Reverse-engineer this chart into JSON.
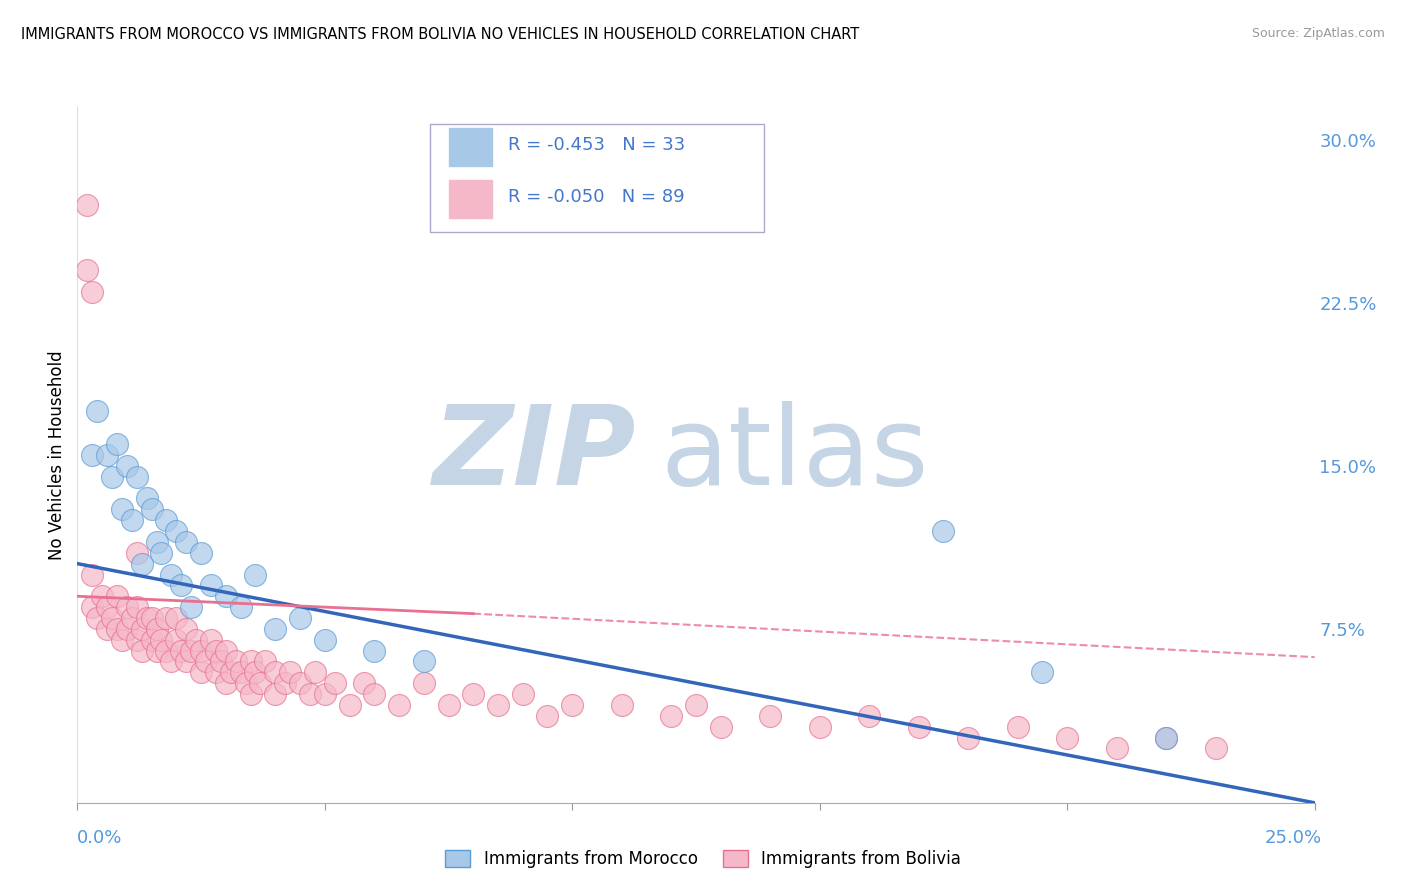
{
  "title": "IMMIGRANTS FROM MOROCCO VS IMMIGRANTS FROM BOLIVIA NO VEHICLES IN HOUSEHOLD CORRELATION CHART",
  "source": "Source: ZipAtlas.com",
  "ylabel": "No Vehicles in Household",
  "ytick_labels": [
    "30.0%",
    "22.5%",
    "15.0%",
    "7.5%"
  ],
  "ytick_values": [
    0.3,
    0.225,
    0.15,
    0.075
  ],
  "xlim": [
    0.0,
    0.25
  ],
  "ylim": [
    -0.005,
    0.315
  ],
  "legend_R_morocco": "-0.453",
  "legend_N_morocco": "33",
  "legend_R_bolivia": "-0.050",
  "legend_N_bolivia": "89",
  "morocco_color": "#A8C8E8",
  "bolivia_color": "#F5B8C8",
  "morocco_edge_color": "#5B9BD5",
  "bolivia_edge_color": "#E87090",
  "morocco_line_color": "#3366BB",
  "bolivia_line_color": "#E87090",
  "watermark_zip_color": "#C5D5E5",
  "watermark_atlas_color": "#C5D5E5",
  "legend_text_color": "#4477CC",
  "ytick_color": "#5599DD",
  "xtick_left_label": "0.0%",
  "xtick_right_label": "25.0%",
  "xtick_label_color": "#5599DD",
  "grid_color": "#CCCCCC",
  "morocco_points_x": [
    0.003,
    0.004,
    0.006,
    0.007,
    0.008,
    0.009,
    0.01,
    0.011,
    0.012,
    0.013,
    0.014,
    0.015,
    0.016,
    0.017,
    0.018,
    0.019,
    0.02,
    0.021,
    0.022,
    0.023,
    0.025,
    0.027,
    0.03,
    0.033,
    0.036,
    0.04,
    0.045,
    0.05,
    0.06,
    0.07,
    0.175,
    0.195,
    0.22
  ],
  "morocco_points_y": [
    0.155,
    0.175,
    0.155,
    0.145,
    0.16,
    0.13,
    0.15,
    0.125,
    0.145,
    0.105,
    0.135,
    0.13,
    0.115,
    0.11,
    0.125,
    0.1,
    0.12,
    0.095,
    0.115,
    0.085,
    0.11,
    0.095,
    0.09,
    0.085,
    0.1,
    0.075,
    0.08,
    0.07,
    0.065,
    0.06,
    0.12,
    0.055,
    0.025
  ],
  "bolivia_points_x": [
    0.002,
    0.003,
    0.003,
    0.004,
    0.005,
    0.006,
    0.006,
    0.007,
    0.008,
    0.008,
    0.009,
    0.01,
    0.01,
    0.011,
    0.012,
    0.012,
    0.013,
    0.013,
    0.014,
    0.015,
    0.015,
    0.016,
    0.016,
    0.017,
    0.018,
    0.018,
    0.019,
    0.02,
    0.02,
    0.021,
    0.022,
    0.022,
    0.023,
    0.024,
    0.025,
    0.025,
    0.026,
    0.027,
    0.028,
    0.028,
    0.029,
    0.03,
    0.03,
    0.031,
    0.032,
    0.033,
    0.034,
    0.035,
    0.035,
    0.036,
    0.037,
    0.038,
    0.04,
    0.04,
    0.042,
    0.043,
    0.045,
    0.047,
    0.048,
    0.05,
    0.052,
    0.055,
    0.058,
    0.06,
    0.065,
    0.07,
    0.075,
    0.08,
    0.085,
    0.09,
    0.095,
    0.1,
    0.11,
    0.12,
    0.125,
    0.13,
    0.14,
    0.15,
    0.16,
    0.17,
    0.18,
    0.19,
    0.2,
    0.21,
    0.22,
    0.23,
    0.002,
    0.003,
    0.012
  ],
  "bolivia_points_y": [
    0.27,
    0.1,
    0.085,
    0.08,
    0.09,
    0.075,
    0.085,
    0.08,
    0.075,
    0.09,
    0.07,
    0.085,
    0.075,
    0.08,
    0.07,
    0.085,
    0.075,
    0.065,
    0.08,
    0.07,
    0.08,
    0.065,
    0.075,
    0.07,
    0.065,
    0.08,
    0.06,
    0.07,
    0.08,
    0.065,
    0.06,
    0.075,
    0.065,
    0.07,
    0.055,
    0.065,
    0.06,
    0.07,
    0.055,
    0.065,
    0.06,
    0.05,
    0.065,
    0.055,
    0.06,
    0.055,
    0.05,
    0.06,
    0.045,
    0.055,
    0.05,
    0.06,
    0.045,
    0.055,
    0.05,
    0.055,
    0.05,
    0.045,
    0.055,
    0.045,
    0.05,
    0.04,
    0.05,
    0.045,
    0.04,
    0.05,
    0.04,
    0.045,
    0.04,
    0.045,
    0.035,
    0.04,
    0.04,
    0.035,
    0.04,
    0.03,
    0.035,
    0.03,
    0.035,
    0.03,
    0.025,
    0.03,
    0.025,
    0.02,
    0.025,
    0.02,
    0.24,
    0.23,
    0.11
  ]
}
